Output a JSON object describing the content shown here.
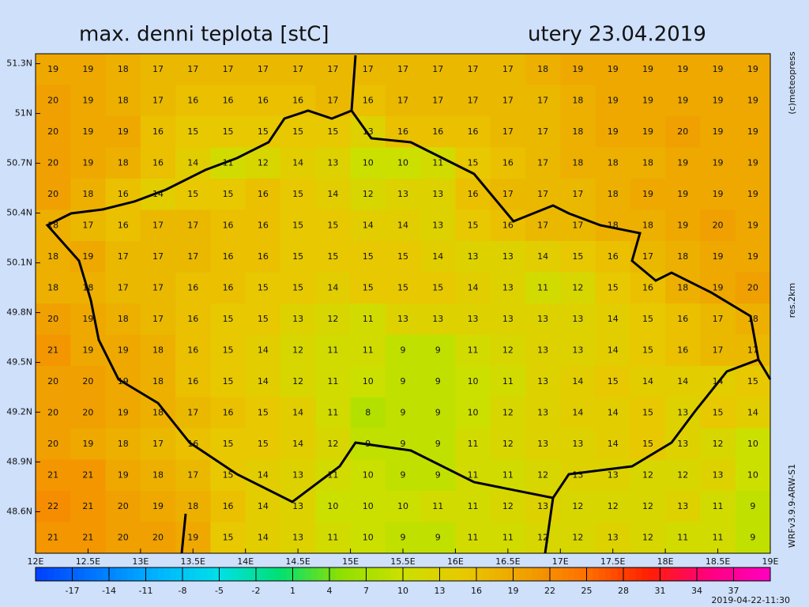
{
  "chart_data": {
    "type": "heatmap",
    "title": "max. denni teplota [stC]",
    "date": "utery 23.04.2019",
    "copyright": "(c)meteopress",
    "resolution": "res.2km",
    "model": "WRFv3.9.9-ARW-S1",
    "timestamp": "2019-04-22-11:30",
    "xlim": [
      12,
      19
    ],
    "ylim": [
      48.35,
      51.36
    ],
    "xticks": [
      {
        "value": 12,
        "label": "12E"
      },
      {
        "value": 12.5,
        "label": "12.5E"
      },
      {
        "value": 13,
        "label": "13E"
      },
      {
        "value": 13.5,
        "label": "13.5E"
      },
      {
        "value": 14,
        "label": "14E"
      },
      {
        "value": 14.5,
        "label": "14.5E"
      },
      {
        "value": 15,
        "label": "15E"
      },
      {
        "value": 15.5,
        "label": "15.5E"
      },
      {
        "value": 16,
        "label": "16E"
      },
      {
        "value": 16.5,
        "label": "16.5E"
      },
      {
        "value": 17,
        "label": "17E"
      },
      {
        "value": 17.5,
        "label": "17.5E"
      },
      {
        "value": 18,
        "label": "18E"
      },
      {
        "value": 18.5,
        "label": "18.5E"
      },
      {
        "value": 19,
        "label": "19E"
      }
    ],
    "yticks": [
      {
        "value": 51.3,
        "label": "51.3N"
      },
      {
        "value": 51,
        "label": "51N"
      },
      {
        "value": 50.7,
        "label": "50.7N"
      },
      {
        "value": 50.4,
        "label": "50.4N"
      },
      {
        "value": 50.1,
        "label": "50.1N"
      },
      {
        "value": 49.8,
        "label": "49.8N"
      },
      {
        "value": 49.5,
        "label": "49.5N"
      },
      {
        "value": 49.2,
        "label": "49.2N"
      },
      {
        "value": 48.9,
        "label": "48.9N"
      },
      {
        "value": 48.6,
        "label": "48.6N"
      }
    ],
    "colorbar": {
      "lim": [
        -20,
        40
      ],
      "ticks": [
        -17,
        -14,
        -11,
        -8,
        -5,
        -2,
        1,
        4,
        7,
        10,
        13,
        16,
        19,
        22,
        25,
        28,
        31,
        34,
        37
      ],
      "colors": [
        "#0040ff",
        "#0078ff",
        "#00b4ff",
        "#00e0e8",
        "#00e070",
        "#90e000",
        "#cce000",
        "#e8c800",
        "#f0a000",
        "#ff7000",
        "#ff2000",
        "#ff0080",
        "#ff00c0"
      ]
    },
    "values": [
      [
        19,
        19,
        18,
        17,
        17,
        17,
        17,
        17,
        17,
        17,
        17,
        17,
        17,
        17,
        18,
        19,
        19,
        19,
        19,
        19,
        19
      ],
      [
        20,
        19,
        18,
        17,
        16,
        16,
        16,
        16,
        17,
        16,
        17,
        17,
        17,
        17,
        17,
        18,
        19,
        19,
        19,
        19,
        19
      ],
      [
        20,
        19,
        19,
        16,
        15,
        15,
        15,
        15,
        15,
        13,
        16,
        16,
        16,
        17,
        17,
        18,
        19,
        19,
        20,
        19,
        19
      ],
      [
        20,
        19,
        18,
        16,
        14,
        11,
        12,
        14,
        13,
        10,
        10,
        11,
        15,
        16,
        17,
        18,
        18,
        18,
        19,
        19,
        19
      ],
      [
        20,
        18,
        16,
        14,
        15,
        15,
        16,
        15,
        14,
        12,
        13,
        13,
        16,
        17,
        17,
        17,
        18,
        19,
        19,
        19,
        19
      ],
      [
        18,
        17,
        16,
        17,
        17,
        16,
        16,
        15,
        15,
        14,
        14,
        13,
        15,
        16,
        17,
        17,
        18,
        18,
        19,
        20,
        19
      ],
      [
        18,
        19,
        17,
        17,
        17,
        16,
        16,
        15,
        15,
        15,
        15,
        14,
        13,
        13,
        14,
        15,
        16,
        17,
        18,
        19,
        19
      ],
      [
        18,
        18,
        17,
        17,
        16,
        16,
        15,
        15,
        14,
        15,
        15,
        15,
        14,
        13,
        11,
        12,
        15,
        16,
        18,
        19,
        20
      ],
      [
        20,
        19,
        18,
        17,
        16,
        15,
        15,
        13,
        12,
        11,
        13,
        13,
        13,
        13,
        13,
        13,
        14,
        15,
        16,
        17,
        18
      ],
      [
        21,
        19,
        19,
        18,
        16,
        15,
        14,
        12,
        11,
        11,
        9,
        9,
        11,
        12,
        13,
        13,
        14,
        15,
        16,
        17,
        17
      ],
      [
        20,
        20,
        19,
        18,
        16,
        15,
        14,
        12,
        11,
        10,
        9,
        9,
        10,
        11,
        13,
        14,
        15,
        14,
        14,
        14,
        15
      ],
      [
        20,
        20,
        19,
        18,
        17,
        16,
        15,
        14,
        11,
        8,
        9,
        9,
        10,
        12,
        13,
        14,
        14,
        15,
        13,
        15,
        14
      ],
      [
        20,
        19,
        18,
        17,
        16,
        15,
        15,
        14,
        12,
        9,
        9,
        9,
        11,
        12,
        13,
        13,
        14,
        15,
        13,
        12,
        10
      ],
      [
        21,
        21,
        19,
        18,
        17,
        15,
        14,
        13,
        11,
        10,
        9,
        9,
        11,
        11,
        12,
        13,
        13,
        12,
        12,
        13,
        10
      ],
      [
        22,
        21,
        20,
        19,
        18,
        16,
        14,
        13,
        10,
        10,
        10,
        11,
        11,
        12,
        13,
        12,
        12,
        12,
        13,
        11,
        9
      ],
      [
        21,
        21,
        20,
        20,
        19,
        15,
        14,
        13,
        11,
        10,
        9,
        9,
        11,
        11,
        12,
        12,
        13,
        12,
        11,
        11,
        9
      ]
    ]
  }
}
